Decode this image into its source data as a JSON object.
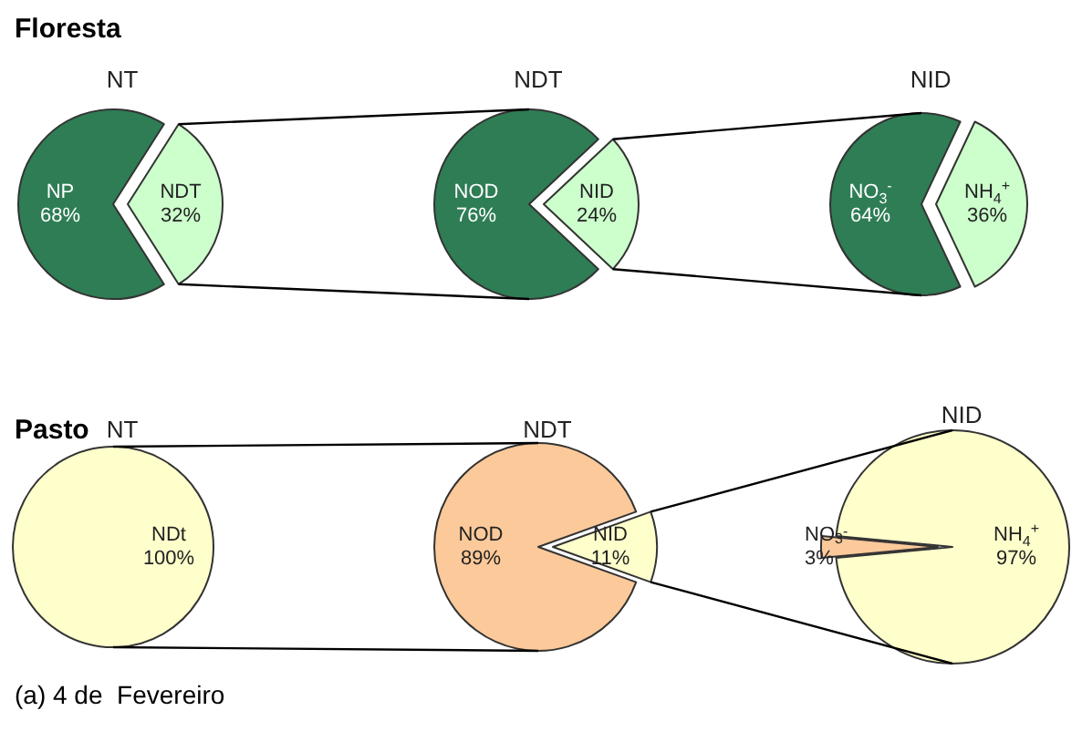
{
  "chart_data": [
    {
      "type": "pie",
      "title": "NT",
      "annotations": [
        "Floresta"
      ],
      "categories": [
        "NP",
        "NDT"
      ],
      "values": [
        68,
        32
      ],
      "value_labels": [
        "68%",
        "32%"
      ],
      "colors": [
        "#2e7d55",
        "#ccffcc"
      ]
    },
    {
      "type": "pie",
      "title": "NDT",
      "categories": [
        "NOD",
        "NID"
      ],
      "values": [
        76,
        24
      ],
      "value_labels": [
        "76%",
        "24%"
      ],
      "colors": [
        "#2e7d55",
        "#ccffcc"
      ]
    },
    {
      "type": "pie",
      "title": "NID",
      "categories": [
        "NO$_{3}$$^{-}$",
        "NH$_{4}$$^{+}$"
      ],
      "values": [
        64,
        36
      ],
      "value_labels": [
        "64%",
        "36%"
      ],
      "colors": [
        "#2e7d55",
        "#ccffcc"
      ]
    },
    {
      "type": "pie",
      "title": "NT",
      "annotations": [
        "Pasto",
        "(a) 4 de  Fevereiro"
      ],
      "categories": [
        "NDt"
      ],
      "values": [
        100
      ],
      "value_labels": [
        "100%"
      ],
      "colors": [
        "#ffffcc"
      ]
    },
    {
      "type": "pie",
      "title": "NDT",
      "categories": [
        "NOD",
        "NID"
      ],
      "values": [
        89,
        11
      ],
      "value_labels": [
        "89%",
        "11%"
      ],
      "colors": [
        "#fcc99a",
        "#ffffcc"
      ]
    },
    {
      "type": "pie",
      "title": "NID",
      "categories": [
        "NH$_{4}$$^{+}$",
        "NO$_{3}$$^{-}$"
      ],
      "values": [
        97,
        3
      ],
      "value_labels": [
        "97%",
        "3%"
      ],
      "colors": [
        "#ffffcc",
        "#fcc99a"
      ]
    }
  ]
}
